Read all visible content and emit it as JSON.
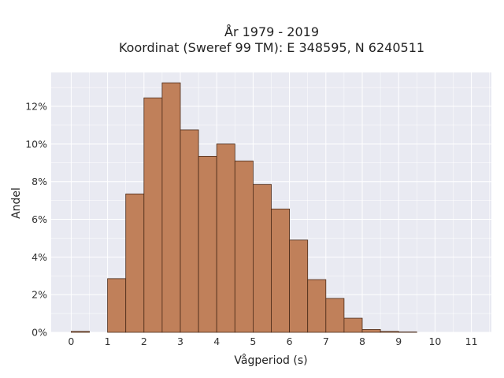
{
  "chart_data": {
    "type": "bar",
    "title_line1": "År 1979 - 2019",
    "title_line2": "Koordinat (Sweref 99 TM): E 348595, N 6240511",
    "xlabel": "Vågperiod (s)",
    "ylabel": "Andel",
    "bin_width": 0.5,
    "bins": [
      {
        "x0": 0.0,
        "x1": 0.5,
        "value": 0.05
      },
      {
        "x0": 0.5,
        "x1": 1.0,
        "value": 0.0
      },
      {
        "x0": 1.0,
        "x1": 1.5,
        "value": 2.85
      },
      {
        "x0": 1.5,
        "x1": 2.0,
        "value": 7.35
      },
      {
        "x0": 2.0,
        "x1": 2.5,
        "value": 12.45
      },
      {
        "x0": 2.5,
        "x1": 3.0,
        "value": 13.25
      },
      {
        "x0": 3.0,
        "x1": 3.5,
        "value": 10.75
      },
      {
        "x0": 3.5,
        "x1": 4.0,
        "value": 9.35
      },
      {
        "x0": 4.0,
        "x1": 4.5,
        "value": 10.0
      },
      {
        "x0": 4.5,
        "x1": 5.0,
        "value": 9.1
      },
      {
        "x0": 5.0,
        "x1": 5.5,
        "value": 7.85
      },
      {
        "x0": 5.5,
        "x1": 6.0,
        "value": 6.55
      },
      {
        "x0": 6.0,
        "x1": 6.5,
        "value": 4.9
      },
      {
        "x0": 6.5,
        "x1": 7.0,
        "value": 2.8
      },
      {
        "x0": 7.0,
        "x1": 7.5,
        "value": 1.8
      },
      {
        "x0": 7.5,
        "x1": 8.0,
        "value": 0.75
      },
      {
        "x0": 8.0,
        "x1": 8.5,
        "value": 0.15
      },
      {
        "x0": 8.5,
        "x1": 9.0,
        "value": 0.05
      },
      {
        "x0": 9.0,
        "x1": 9.5,
        "value": 0.02
      }
    ],
    "xlim": [
      -0.55,
      11.55
    ],
    "ylim": [
      0,
      13.8
    ],
    "xticks": [
      0,
      1,
      2,
      3,
      4,
      5,
      6,
      7,
      8,
      9,
      10,
      11
    ],
    "yticks": [
      0,
      2,
      4,
      6,
      8,
      10,
      12
    ],
    "ytick_suffix": "%",
    "grid": true,
    "colors": {
      "bar_fill": "#c0805a",
      "bar_edge": "#4a2a18",
      "plot_bg": "#e9eaf2",
      "grid": "#ffffff"
    }
  }
}
